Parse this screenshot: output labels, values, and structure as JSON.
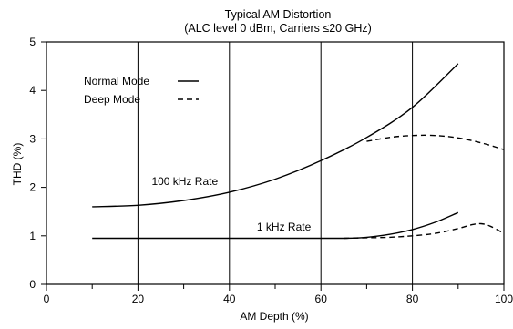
{
  "chart_data": {
    "type": "line",
    "title": "Typical AM Distortion",
    "subtitle": "(ALC level 0 dBm, Carriers ≤20 GHz)",
    "xlabel": "AM Depth (%)",
    "ylabel": "THD (%)",
    "xlim": [
      0,
      100
    ],
    "ylim": [
      0,
      5
    ],
    "xticks": [
      0,
      20,
      40,
      60,
      80,
      100
    ],
    "yticks": [
      0,
      1,
      2,
      3,
      4,
      5
    ],
    "grid": "vertical lines at 20, 40, 60, 80",
    "legend_placement": "top-left",
    "legend": [
      {
        "label": "Normal Mode",
        "style": "solid"
      },
      {
        "label": "Deep Mode",
        "style": "dashed"
      }
    ],
    "annotations": [
      {
        "text": "100 kHz Rate",
        "x": 23,
        "y": 2.05
      },
      {
        "text": "1 kHz Rate",
        "x": 46,
        "y": 1.11
      }
    ],
    "series": [
      {
        "style": "solid",
        "x": [
          10,
          20,
          30,
          40,
          50,
          60,
          70,
          80,
          90
        ],
        "y": [
          1.6,
          1.63,
          1.73,
          1.9,
          2.17,
          2.55,
          3.03,
          3.65,
          4.55
        ]
      },
      {
        "style": "dashed",
        "x": [
          70,
          75,
          80,
          85,
          90,
          95,
          100
        ],
        "y": [
          2.95,
          3.03,
          3.07,
          3.07,
          3.02,
          2.92,
          2.78
        ]
      },
      {
        "style": "solid",
        "x": [
          10,
          30,
          50,
          65,
          70,
          75,
          80,
          85,
          90
        ],
        "y": [
          0.95,
          0.95,
          0.95,
          0.95,
          0.97,
          1.03,
          1.13,
          1.28,
          1.48
        ]
      },
      {
        "style": "dashed",
        "x": [
          65,
          70,
          75,
          80,
          85,
          90,
          93,
          95,
          97,
          100
        ],
        "y": [
          0.95,
          0.96,
          0.97,
          1.0,
          1.05,
          1.15,
          1.23,
          1.25,
          1.2,
          1.05
        ]
      }
    ]
  }
}
